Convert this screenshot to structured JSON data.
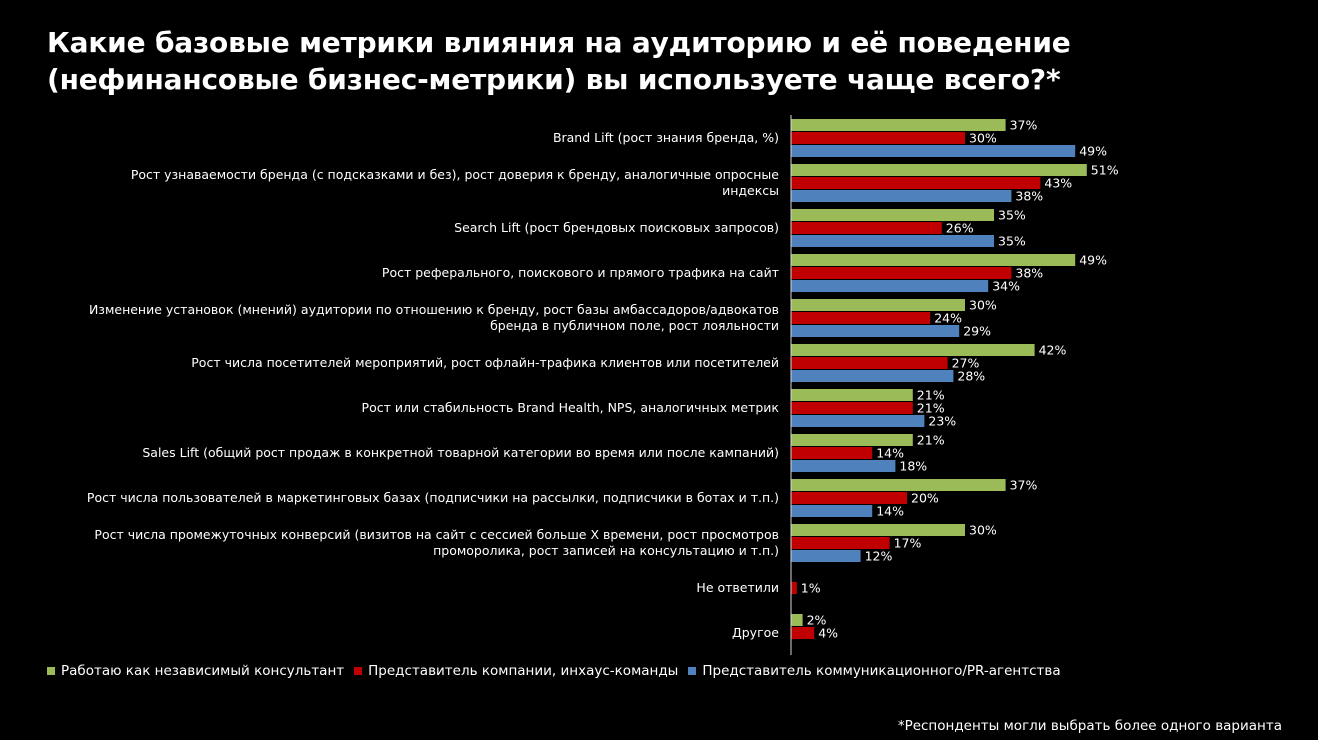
{
  "title": {
    "line1": "Какие базовые метрики влияния на аудиторию и её поведение",
    "line2": "(нефинансовые бизнес-метрики) вы используете чаще всего?*"
  },
  "footnote": "*Респонденты могли выбрать более одного варианта",
  "colors": {
    "consultant": "#9bbb59",
    "company": "#c00000",
    "agency": "#4f81bd",
    "axis": "#d9d9d9"
  },
  "chart_data": {
    "type": "bar",
    "orientation": "horizontal",
    "value_format": "percent",
    "xlim": [
      0,
      60
    ],
    "grid": false,
    "legend_position": "bottom-left",
    "categories": [
      [
        "Brand Lift (рост знания бренда, %)"
      ],
      [
        "Рост узнаваемости бренда (с подсказками и без), рост доверия к бренду, аналогичные опросные",
        "индексы"
      ],
      [
        "Search Lift (рост брендовых поисковых запросов)"
      ],
      [
        "Рост реферального, поискового и прямого трафика на сайт"
      ],
      [
        "Изменение установок (мнений) аудитории по отношению к бренду, рост базы амбассадоров/адвокатов",
        "бренда в публичном поле, рост лояльности"
      ],
      [
        "Рост числа посетителей мероприятий, рост офлайн-трафика клиентов или посетителей"
      ],
      [
        "Рост или стабильность Brand Health, NPS, аналогичных метрик"
      ],
      [
        "Sales Lift (общий рост продаж в конкретной товарной категории во время или после кампаний)"
      ],
      [
        "Рост числа пользователей в маркетинговых базах (подписчики на рассылки, подписчики в ботах и т.п.)"
      ],
      [
        "Рост числа промежуточных конверсий (визитов на сайт с сессией больше Х времени, рост просмотров",
        "проморолика, рост записей на консультацию и т.п.)"
      ],
      [
        "Не ответили"
      ],
      [
        "Другое"
      ]
    ],
    "series": [
      {
        "name": "Работаю как независимый консультант",
        "color_key": "consultant",
        "values": [
          37,
          51,
          35,
          49,
          30,
          42,
          21,
          21,
          37,
          30,
          null,
          2
        ]
      },
      {
        "name": "Представитель компании, инхаус-команды",
        "color_key": "company",
        "values": [
          30,
          43,
          26,
          38,
          24,
          27,
          21,
          14,
          20,
          17,
          1,
          4
        ]
      },
      {
        "name": "Представитель коммуникационного/PR-агентства",
        "color_key": "agency",
        "values": [
          49,
          38,
          35,
          34,
          29,
          28,
          23,
          18,
          14,
          12,
          null,
          null
        ]
      }
    ]
  }
}
